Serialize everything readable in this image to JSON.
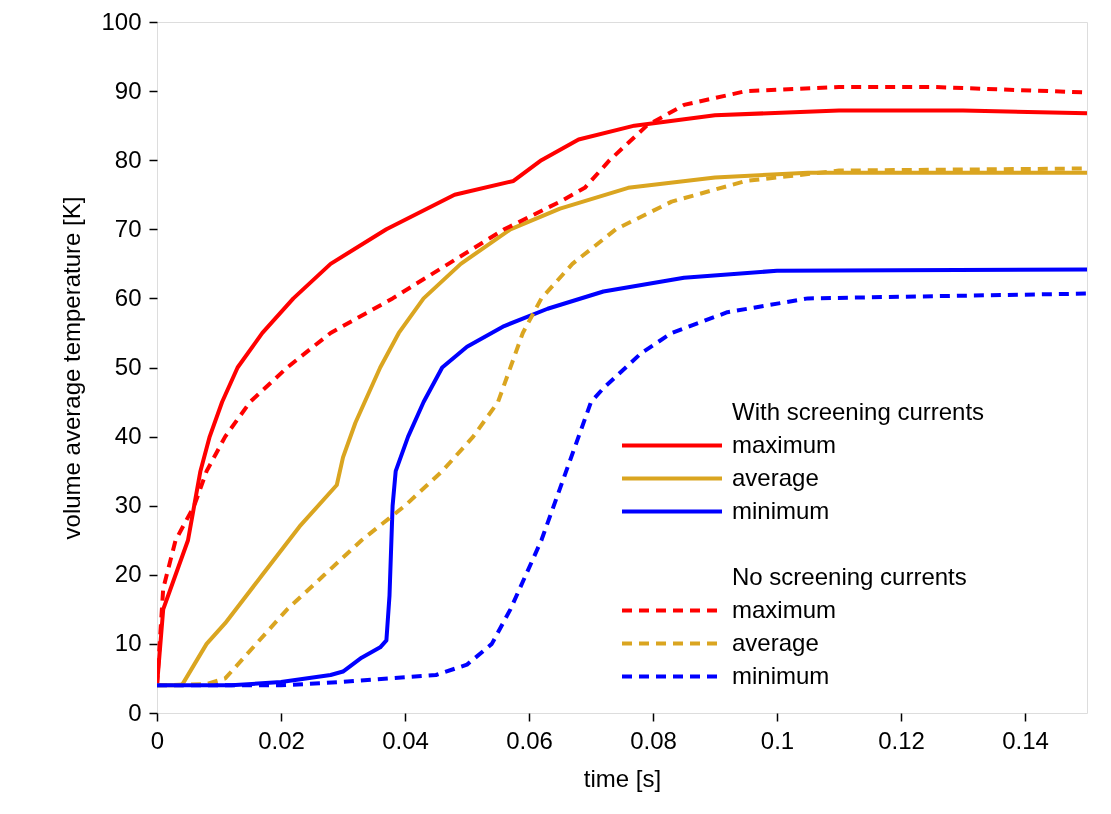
{
  "chart_data": {
    "type": "line",
    "xlabel": "time [s]",
    "ylabel": "volume average temperature [K]",
    "xlim": [
      0,
      0.15
    ],
    "ylim": [
      0,
      100
    ],
    "xticks": [
      0,
      0.02,
      0.04,
      0.06,
      0.08,
      0.1,
      0.12,
      0.14
    ],
    "yticks": [
      0,
      10,
      20,
      30,
      40,
      50,
      60,
      70,
      80,
      90,
      100
    ],
    "grid": false,
    "legend": "bottom right",
    "marker": "none",
    "annotations": [
      "With screening currents",
      "No screening currents"
    ],
    "series": [
      {
        "name": "maximum",
        "color": "#ff0000",
        "line_style": "solid",
        "x": [
          0,
          0.001,
          0.003,
          0.005,
          0.006,
          0.007,
          0.0085,
          0.0105,
          0.013,
          0.017,
          0.022,
          0.028,
          0.037,
          0.048,
          0.0575,
          0.062,
          0.068,
          0.077,
          0.09,
          0.11,
          0.13,
          0.15
        ],
        "values": [
          4,
          15,
          20,
          25,
          30,
          35,
          40,
          45,
          50,
          55,
          60,
          65,
          70,
          75,
          77,
          80,
          83,
          85,
          86.5,
          87.2,
          87.2,
          86.8
        ]
      },
      {
        "name": "average",
        "color": "#daa520",
        "line_style": "solid",
        "x": [
          0,
          0.004,
          0.006,
          0.008,
          0.011,
          0.017,
          0.023,
          0.029,
          0.03,
          0.032,
          0.036,
          0.039,
          0.043,
          0.049,
          0.057,
          0.065,
          0.076,
          0.09,
          0.105,
          0.15
        ],
        "values": [
          4,
          4,
          7,
          10,
          13,
          20,
          27,
          33,
          37,
          42,
          50,
          55,
          60,
          65,
          70,
          73,
          76,
          77.5,
          78.2,
          78.2
        ]
      },
      {
        "name": "minimum",
        "color": "#0000ff",
        "line_style": "solid",
        "x": [
          0,
          0.012,
          0.02,
          0.028,
          0.03,
          0.033,
          0.036,
          0.037,
          0.0375,
          0.038,
          0.0385,
          0.0405,
          0.043,
          0.046,
          0.05,
          0.056,
          0.063,
          0.072,
          0.085,
          0.1,
          0.15
        ],
        "values": [
          4,
          4,
          4.5,
          5.5,
          6,
          8,
          9.5,
          10.5,
          17,
          30,
          35,
          40,
          45,
          50,
          53,
          56,
          58.5,
          61,
          63,
          64,
          64.2
        ]
      },
      {
        "name": "maximum",
        "color": "#ff0000",
        "line_style": "dashed",
        "x": [
          0,
          0.001,
          0.003,
          0.006,
          0.008,
          0.011,
          0.015,
          0.021,
          0.028,
          0.038,
          0.047,
          0.056,
          0.065,
          0.069,
          0.073,
          0.079,
          0.085,
          0.095,
          0.11,
          0.125,
          0.15
        ],
        "values": [
          4,
          18,
          25,
          30,
          35,
          40,
          45,
          50,
          55,
          60,
          65,
          70,
          74,
          76,
          80,
          85,
          88,
          90,
          90.6,
          90.6,
          89.8
        ]
      },
      {
        "name": "average",
        "color": "#daa520",
        "line_style": "dashed",
        "x": [
          0,
          0.008,
          0.011,
          0.016,
          0.021,
          0.027,
          0.033,
          0.04,
          0.046,
          0.051,
          0.055,
          0.059,
          0.062,
          0.067,
          0.074,
          0.083,
          0.095,
          0.11,
          0.15
        ],
        "values": [
          4,
          4.2,
          5,
          10,
          15,
          20,
          25,
          30,
          35,
          40,
          45,
          55,
          60,
          65,
          70,
          74,
          77,
          78.5,
          78.8
        ]
      },
      {
        "name": "minimum",
        "color": "#0000ff",
        "line_style": "dashed",
        "x": [
          0,
          0.02,
          0.03,
          0.045,
          0.05,
          0.054,
          0.057,
          0.062,
          0.066,
          0.07,
          0.072,
          0.078,
          0.083,
          0.092,
          0.105,
          0.15
        ],
        "values": [
          4,
          4,
          4.5,
          5.5,
          7,
          10,
          15,
          25,
          35,
          45,
          47,
          52,
          55,
          58,
          60,
          60.7
        ]
      }
    ]
  }
}
